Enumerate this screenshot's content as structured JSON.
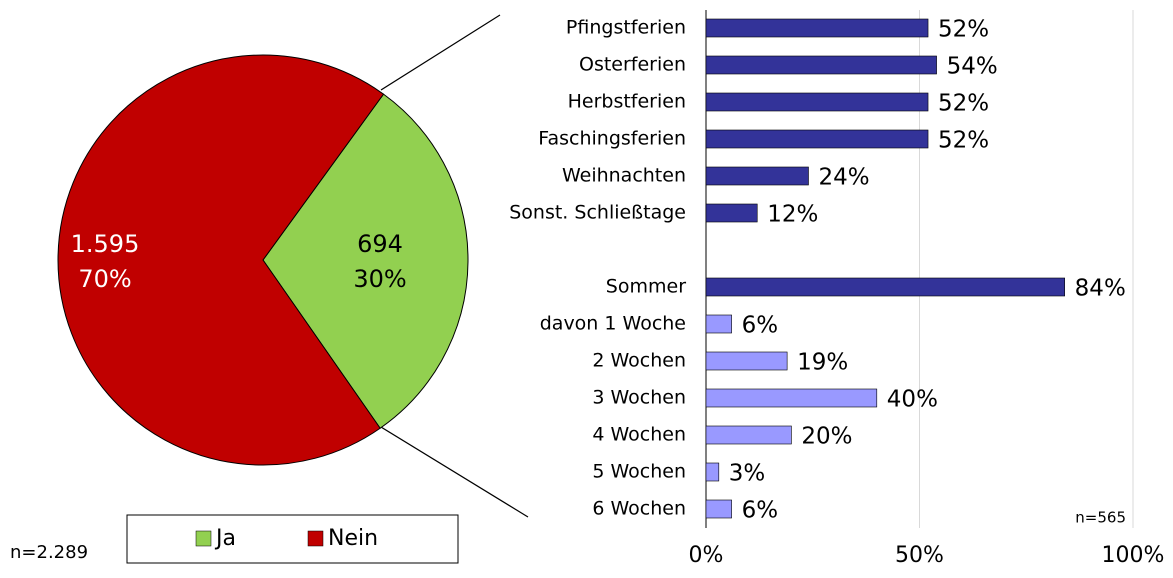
{
  "chart_data": [
    {
      "type": "pie",
      "categories": [
        "Ja",
        "Nein"
      ],
      "values": [
        694,
        1595
      ],
      "value_labels": [
        "694",
        "1.595"
      ],
      "percentages": [
        30,
        70
      ],
      "percentage_labels": [
        "30%",
        "70%"
      ],
      "colors": [
        "#92d050",
        "#c00000"
      ],
      "label_colors": [
        "#000000",
        "#ffffff"
      ],
      "annotation": "n=2.289",
      "legend": "bottom"
    },
    {
      "type": "barh",
      "categories": [
        "Pfingstferien",
        "Osterferien",
        "Herbstferien",
        "Faschingsferien",
        "Weihnachten",
        "Sonst. Schließtage",
        null,
        "Sommer",
        "davon 1 Woche",
        "2 Wochen",
        "3 Wochen",
        "4 Wochen",
        "5 Wochen",
        "6 Wochen"
      ],
      "values": [
        52,
        54,
        52,
        52,
        24,
        12,
        null,
        84,
        6,
        19,
        40,
        20,
        3,
        6
      ],
      "value_labels": [
        "52%",
        "54%",
        "52%",
        "52%",
        "24%",
        "12%",
        null,
        "84%",
        "6%",
        "19%",
        "40%",
        "20%",
        "3%",
        "6%"
      ],
      "colors": [
        "#333399",
        "#333399",
        "#333399",
        "#333399",
        "#333399",
        "#333399",
        null,
        "#333399",
        "#9999ff",
        "#9999ff",
        "#9999ff",
        "#9999ff",
        "#9999ff",
        "#9999ff"
      ],
      "xlim": [
        0,
        100
      ],
      "xticks": [
        {
          "value": 0,
          "label": "0%"
        },
        {
          "value": 50,
          "label": "50%"
        },
        {
          "value": 100,
          "label": "100%"
        }
      ],
      "grid": true,
      "annotation": "n=565"
    }
  ]
}
